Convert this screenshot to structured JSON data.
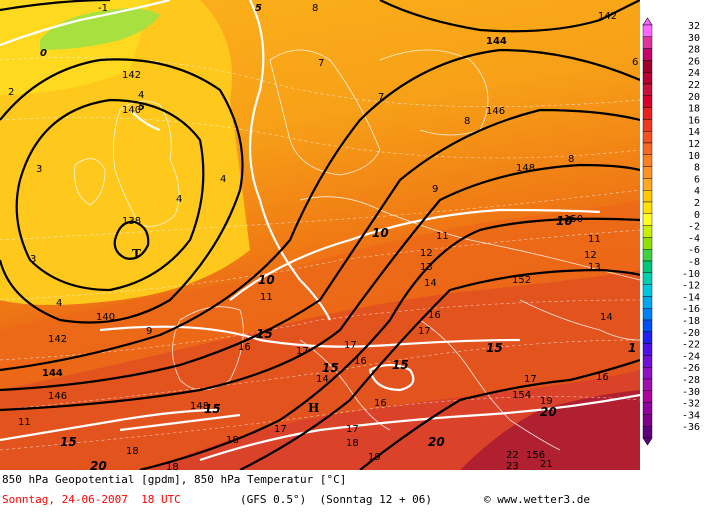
{
  "map": {
    "low_marker": "T",
    "high_marker": "H",
    "geopotential_labels": [
      "140",
      "142",
      "144",
      "146",
      "148",
      "150",
      "152",
      "154",
      "156",
      "138"
    ],
    "temperature_labels": [
      "-1",
      "0",
      "2",
      "4",
      "5",
      "8",
      "10",
      "15",
      "20"
    ],
    "grid_values": [
      "7",
      "8",
      "9",
      "10",
      "11",
      "12",
      "13",
      "14",
      "16",
      "17",
      "18",
      "19",
      "21",
      "22",
      "23",
      "3",
      "6",
      "1"
    ]
  },
  "legend": {
    "values": [
      "32",
      "30",
      "28",
      "26",
      "24",
      "22",
      "20",
      "18",
      "16",
      "14",
      "12",
      "10",
      "8",
      "6",
      "4",
      "2",
      "0",
      "-2",
      "-4",
      "-6",
      "-8",
      "-10",
      "-12",
      "-14",
      "-16",
      "-18",
      "-20",
      "-22",
      "-24",
      "-26",
      "-28",
      "-30",
      "-32",
      "-34",
      "-36"
    ],
    "colors": [
      "#ff66ff",
      "#e0339a",
      "#c8006a",
      "#a00028",
      "#b80030",
      "#c81038",
      "#d80028",
      "#e82020",
      "#f03820",
      "#f45020",
      "#f86820",
      "#fa8020",
      "#fb9420",
      "#fca820",
      "#ffc800",
      "#ffe000",
      "#ffff20",
      "#c8f000",
      "#90e000",
      "#40d040",
      "#00c878",
      "#00d0b0",
      "#00c8e0",
      "#00a8f0",
      "#0080f8",
      "#0050f8",
      "#2020f0",
      "#5010e8",
      "#7010d8",
      "#9010c8",
      "#a010b0",
      "#b000a0",
      "#9000a0",
      "#80008c",
      "#600080"
    ]
  },
  "footer": {
    "line1": "850 hPa Geopotential [gpdm], 850 hPa Temperatur [°C]",
    "date": "Sonntag, 24-06-2007  18 UTC",
    "model": "(GFS 0.5°)  (Sonntag 12 + 06)",
    "copyright": "© www.wetter3.de"
  }
}
